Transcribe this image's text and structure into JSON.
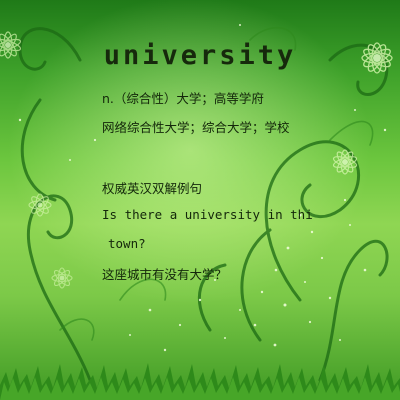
{
  "word": "university",
  "definitions": [
    "n.（综合性）大学；高等学府",
    "网络综合性大学；综合大学；学校"
  ],
  "example_section": {
    "heading": "权威英汉双解例句",
    "sentence_lines": [
      "Is there a university in thi",
      "town?"
    ],
    "translation": "这座城市有没有大学？"
  },
  "colors": {
    "text": "#13270a",
    "background_light": "#9ad85c",
    "background_dark": "#1f7a18",
    "grass": "#2a7a16"
  }
}
